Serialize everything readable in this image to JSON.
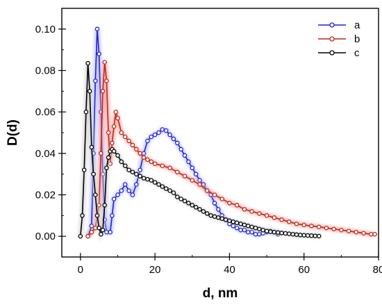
{
  "chart_data": {
    "type": "line",
    "title": "",
    "xlabel": "d, nm",
    "ylabel": "D(d)",
    "xlim": [
      -5,
      80
    ],
    "ylim": [
      -0.01,
      0.11
    ],
    "xticks": [
      0,
      20,
      40,
      60,
      80
    ],
    "xtick_labels": [
      "0",
      "20",
      "40",
      "60",
      "80"
    ],
    "yticks": [
      0.0,
      0.02,
      0.04,
      0.06,
      0.08,
      0.1
    ],
    "ytick_labels": [
      "0.00",
      "0.02",
      "0.04",
      "0.06",
      "0.08",
      "0.10"
    ],
    "grid": false,
    "legend_position": "top-right",
    "markers": "open-circle",
    "series": [
      {
        "name": "a",
        "color": "#1f1fd6",
        "glow": "#aab6ff",
        "points": [
          [
            2,
            0
          ],
          [
            3,
            0.005
          ],
          [
            3.5,
            0.04
          ],
          [
            4,
            0.075
          ],
          [
            4.5,
            0.1
          ],
          [
            5,
            0.088
          ],
          [
            5.5,
            0.06
          ],
          [
            6,
            0.03
          ],
          [
            6.5,
            0.008
          ],
          [
            7,
            0.002
          ],
          [
            8,
            0.002
          ],
          [
            8.5,
            0.01
          ],
          [
            9,
            0.018
          ],
          [
            10,
            0.02
          ],
          [
            11,
            0.022
          ],
          [
            12,
            0.025
          ],
          [
            13,
            0.022
          ],
          [
            14,
            0.02
          ],
          [
            15,
            0.025
          ],
          [
            16,
            0.032
          ],
          [
            17,
            0.04
          ],
          [
            18,
            0.046
          ],
          [
            19,
            0.048
          ],
          [
            20,
            0.049
          ],
          [
            21,
            0.05
          ],
          [
            22,
            0.0515
          ],
          [
            23,
            0.051
          ],
          [
            24,
            0.049
          ],
          [
            25,
            0.047
          ],
          [
            26,
            0.045
          ],
          [
            27,
            0.042
          ],
          [
            28,
            0.039
          ],
          [
            29,
            0.036
          ],
          [
            30,
            0.033
          ],
          [
            31,
            0.03
          ],
          [
            32,
            0.027
          ],
          [
            33,
            0.025
          ],
          [
            34,
            0.022
          ],
          [
            35,
            0.02
          ],
          [
            36,
            0.016
          ],
          [
            37,
            0.013
          ],
          [
            38,
            0.01
          ],
          [
            39,
            0.008
          ],
          [
            40,
            0.006
          ],
          [
            41,
            0.005
          ],
          [
            42,
            0.004
          ],
          [
            43,
            0.003
          ],
          [
            44,
            0.003
          ],
          [
            45,
            0.002
          ],
          [
            46,
            0.002
          ],
          [
            47,
            0.001
          ],
          [
            48,
            0.001
          ],
          [
            49,
            0.0015
          ],
          [
            50,
            0.002
          ],
          [
            51,
            0.0025
          ],
          [
            52,
            0.002
          ],
          [
            53,
            0.001
          ]
        ]
      },
      {
        "name": "b",
        "color": "#b52a1a",
        "glow": "#ff9a9a",
        "points": [
          [
            2,
            0
          ],
          [
            3,
            0.002
          ],
          [
            4,
            0.004
          ],
          [
            5,
            0.015
          ],
          [
            5.5,
            0.04
          ],
          [
            6,
            0.07
          ],
          [
            6.5,
            0.084
          ],
          [
            7,
            0.075
          ],
          [
            7.5,
            0.05
          ],
          [
            8,
            0.035
          ],
          [
            8.5,
            0.045
          ],
          [
            9,
            0.053
          ],
          [
            9.5,
            0.06
          ],
          [
            10,
            0.057
          ],
          [
            11,
            0.05
          ],
          [
            12,
            0.048
          ],
          [
            13,
            0.046
          ],
          [
            14,
            0.044
          ],
          [
            15,
            0.042
          ],
          [
            16,
            0.04
          ],
          [
            17,
            0.038
          ],
          [
            18,
            0.037
          ],
          [
            19,
            0.036
          ],
          [
            20,
            0.035
          ],
          [
            22,
            0.034
          ],
          [
            24,
            0.033
          ],
          [
            26,
            0.031
          ],
          [
            28,
            0.029
          ],
          [
            30,
            0.027
          ],
          [
            32,
            0.025
          ],
          [
            34,
            0.022
          ],
          [
            36,
            0.02
          ],
          [
            38,
            0.018
          ],
          [
            40,
            0.016
          ],
          [
            42,
            0.015
          ],
          [
            44,
            0.013
          ],
          [
            46,
            0.012
          ],
          [
            48,
            0.011
          ],
          [
            50,
            0.01
          ],
          [
            52,
            0.009
          ],
          [
            54,
            0.008
          ],
          [
            56,
            0.007
          ],
          [
            58,
            0.006
          ],
          [
            60,
            0.0055
          ],
          [
            62,
            0.005
          ],
          [
            64,
            0.0045
          ],
          [
            66,
            0.004
          ],
          [
            68,
            0.0035
          ],
          [
            70,
            0.003
          ],
          [
            72,
            0.0025
          ],
          [
            74,
            0.002
          ],
          [
            76,
            0.0015
          ],
          [
            78,
            0.001
          ],
          [
            79,
            0.001
          ]
        ]
      },
      {
        "name": "c",
        "color": "#000000",
        "glow": "#cccccc",
        "points": [
          [
            0,
            0
          ],
          [
            0.5,
            0.01
          ],
          [
            1,
            0.032
          ],
          [
            1.5,
            0.06
          ],
          [
            2,
            0.0835
          ],
          [
            2.5,
            0.07
          ],
          [
            3,
            0.043
          ],
          [
            3.5,
            0.03
          ],
          [
            4,
            0.02
          ],
          [
            4.5,
            0.01
          ],
          [
            5,
            0.004
          ],
          [
            5.5,
            0.001
          ],
          [
            6,
            0.003
          ],
          [
            6.5,
            0.015
          ],
          [
            7,
            0.033
          ],
          [
            7.5,
            0.038
          ],
          [
            8,
            0.041
          ],
          [
            8.5,
            0.042
          ],
          [
            9,
            0.041
          ],
          [
            10,
            0.039
          ],
          [
            11,
            0.036
          ],
          [
            12,
            0.034
          ],
          [
            13,
            0.032
          ],
          [
            14,
            0.031
          ],
          [
            15,
            0.03
          ],
          [
            16,
            0.029
          ],
          [
            17,
            0.028
          ],
          [
            18,
            0.0275
          ],
          [
            19,
            0.027
          ],
          [
            20,
            0.026
          ],
          [
            21,
            0.025
          ],
          [
            22,
            0.024
          ],
          [
            23,
            0.023
          ],
          [
            24,
            0.022
          ],
          [
            25,
            0.021
          ],
          [
            26,
            0.019
          ],
          [
            27,
            0.018
          ],
          [
            28,
            0.017
          ],
          [
            29,
            0.016
          ],
          [
            30,
            0.015
          ],
          [
            31,
            0.014
          ],
          [
            32,
            0.013
          ],
          [
            33,
            0.012
          ],
          [
            34,
            0.011
          ],
          [
            35,
            0.01
          ],
          [
            36,
            0.0095
          ],
          [
            37,
            0.009
          ],
          [
            38,
            0.0085
          ],
          [
            39,
            0.008
          ],
          [
            40,
            0.0075
          ],
          [
            41,
            0.007
          ],
          [
            42,
            0.0065
          ],
          [
            43,
            0.006
          ],
          [
            44,
            0.0055
          ],
          [
            45,
            0.005
          ],
          [
            46,
            0.0045
          ],
          [
            47,
            0.004
          ],
          [
            48,
            0.0035
          ],
          [
            49,
            0.003
          ],
          [
            50,
            0.0025
          ],
          [
            51,
            0.0022
          ],
          [
            52,
            0.002
          ],
          [
            53,
            0.0018
          ],
          [
            54,
            0.0016
          ],
          [
            55,
            0.0014
          ],
          [
            56,
            0.0012
          ],
          [
            57,
            0.001
          ],
          [
            58,
            0.0008
          ],
          [
            59,
            0.0006
          ],
          [
            60,
            0.0005
          ],
          [
            61,
            0.0004
          ],
          [
            62,
            0.0003
          ],
          [
            63,
            0.0002
          ],
          [
            64,
            0.0001
          ]
        ]
      }
    ]
  }
}
